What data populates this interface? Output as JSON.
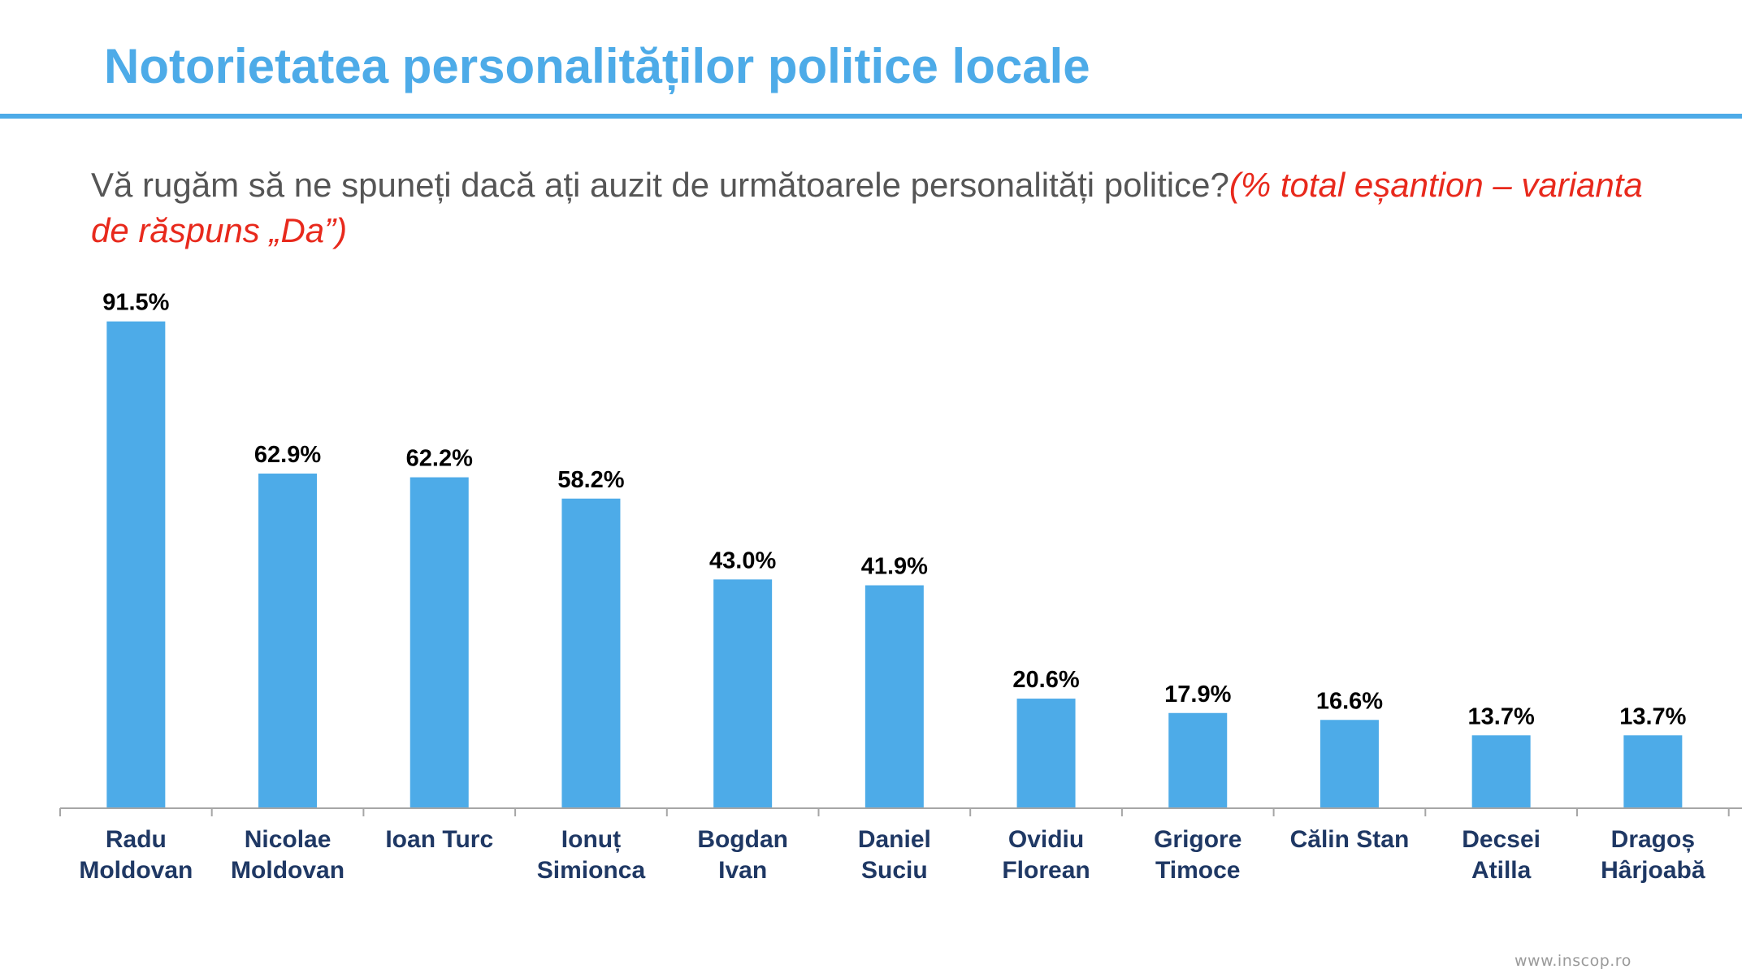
{
  "slide": {
    "title": "Notorietatea personalităților politice locale",
    "question": "Vă rugăm să ne spuneți dacă ați auzit de următoarele personalități politice?",
    "question_note": "(% total eșantion – varianta de răspuns „Da”)",
    "footer_url": "www.inscop.ro"
  },
  "colors": {
    "accent": "#4dabe8",
    "bar": "#4dabe8",
    "note": "#e8291c",
    "axis": "#a6a6a6"
  },
  "chart_data": {
    "type": "bar",
    "categories": [
      [
        "Radu",
        "Moldovan"
      ],
      [
        "Nicolae",
        "Moldovan"
      ],
      [
        "Ioan Turc"
      ],
      [
        "Ionuț",
        "Simionca"
      ],
      [
        "Bogdan",
        "Ivan"
      ],
      [
        "Daniel",
        "Suciu"
      ],
      [
        "Ovidiu",
        "Florean"
      ],
      [
        "Grigore",
        "Timoce"
      ],
      [
        "Călin Stan"
      ],
      [
        "Decsei",
        "Atilla"
      ],
      [
        "Dragoș",
        "Hârjoabă"
      ]
    ],
    "values": [
      91.5,
      62.9,
      62.2,
      58.2,
      43.0,
      41.9,
      20.6,
      17.9,
      16.6,
      13.7,
      13.7
    ],
    "value_labels": [
      "91.5%",
      "62.9%",
      "62.2%",
      "58.2%",
      "43.0%",
      "41.9%",
      "20.6%",
      "17.9%",
      "16.6%",
      "13.7%",
      "13.7%"
    ],
    "ylim": [
      0,
      100
    ],
    "grid": false,
    "legend": "none"
  }
}
